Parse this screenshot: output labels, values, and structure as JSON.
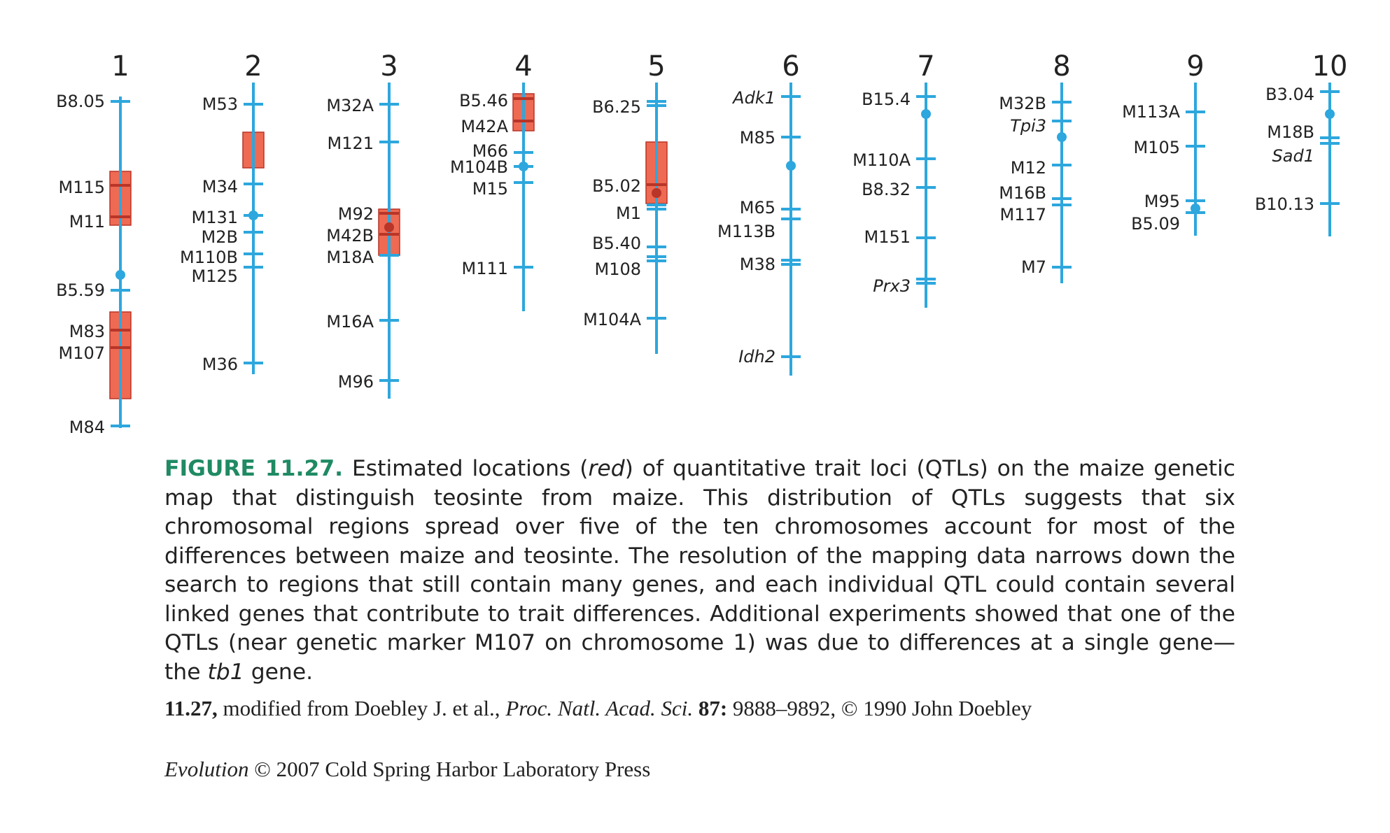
{
  "colors": {
    "chromosome": "#2da7dd",
    "qtl_fill": "#ef6a52",
    "qtl_border": "#b83528",
    "figure_label": "#1f8a63",
    "text": "#222222"
  },
  "chromosomes": [
    {
      "number": "1",
      "markers": [
        {
          "name": "B8.05"
        },
        {
          "name": "M115"
        },
        {
          "name": "M11"
        },
        {
          "name": "B5.59"
        },
        {
          "name": "M83"
        },
        {
          "name": "M107"
        },
        {
          "name": "M84"
        }
      ]
    },
    {
      "number": "2",
      "markers": [
        {
          "name": "M53"
        },
        {
          "name": "M34"
        },
        {
          "name": "M131"
        },
        {
          "name": "M2B"
        },
        {
          "name": "M110B"
        },
        {
          "name": "M125"
        },
        {
          "name": "M36"
        }
      ]
    },
    {
      "number": "3",
      "markers": [
        {
          "name": "M32A"
        },
        {
          "name": "M121"
        },
        {
          "name": "M92"
        },
        {
          "name": "M42B"
        },
        {
          "name": "M18A"
        },
        {
          "name": "M16A"
        },
        {
          "name": "M96"
        }
      ]
    },
    {
      "number": "4",
      "markers": [
        {
          "name": "B5.46"
        },
        {
          "name": "M42A"
        },
        {
          "name": "M66"
        },
        {
          "name": "M104B"
        },
        {
          "name": "M15"
        },
        {
          "name": "M111"
        }
      ]
    },
    {
      "number": "5",
      "markers": [
        {
          "name": "B6.25"
        },
        {
          "name": "B5.02"
        },
        {
          "name": "M1"
        },
        {
          "name": "B5.40"
        },
        {
          "name": "M108"
        },
        {
          "name": "M104A"
        }
      ]
    },
    {
      "number": "6",
      "markers": [
        {
          "name": "Adk1",
          "italic": true
        },
        {
          "name": "M85"
        },
        {
          "name": "M65"
        },
        {
          "name": "M113B"
        },
        {
          "name": "M38"
        },
        {
          "name": "Idh2",
          "italic": true
        }
      ]
    },
    {
      "number": "7",
      "markers": [
        {
          "name": "B15.4"
        },
        {
          "name": "M110A"
        },
        {
          "name": "B8.32"
        },
        {
          "name": "M151"
        },
        {
          "name": "Prx3",
          "italic": true
        }
      ]
    },
    {
      "number": "8",
      "markers": [
        {
          "name": "M32B"
        },
        {
          "name": "Tpi3",
          "italic": true
        },
        {
          "name": "M12"
        },
        {
          "name": "M16B"
        },
        {
          "name": "M117"
        },
        {
          "name": "M7"
        }
      ]
    },
    {
      "number": "9",
      "markers": [
        {
          "name": "M113A"
        },
        {
          "name": "M105"
        },
        {
          "name": "M95"
        },
        {
          "name": "B5.09"
        }
      ]
    },
    {
      "number": "10",
      "markers": [
        {
          "name": "B3.04"
        },
        {
          "name": "M18B"
        },
        {
          "name": "Sad1",
          "italic": true
        },
        {
          "name": "B10.13"
        }
      ]
    }
  ],
  "caption": {
    "label": "FIGURE 11.27.",
    "t1": " Estimated locations (",
    "red_word": "red",
    "t2": ") of quantitative trait loci (QTLs) on the maize genetic map that distinguish teosinte from maize. This distribution of QTLs suggests that six chromosomal regions spread over five of the ten chromosomes account for most of the differences between maize and teosinte. The resolution of the mapping data narrows down the search to regions that still contain many genes, and each individual QTL could contain several linked genes that contribute to trait differences. Additional experiments showed that one of the QTLs (near genetic marker M107 on chromosome 1) was due to differences at a single gene—the ",
    "gene": "tb1",
    "t3": " gene."
  },
  "credit": {
    "fig": "11.27,",
    "text1": " modified from Doebley J. et al., ",
    "journal": "Proc. Natl. Acad. Sci.",
    "volume": " 87:",
    "text2": " 9888–9892, © 1990 John Doebley"
  },
  "publisher": {
    "book": "Evolution",
    "text": " © 2007 Cold Spring Harbor Laboratory Press"
  }
}
